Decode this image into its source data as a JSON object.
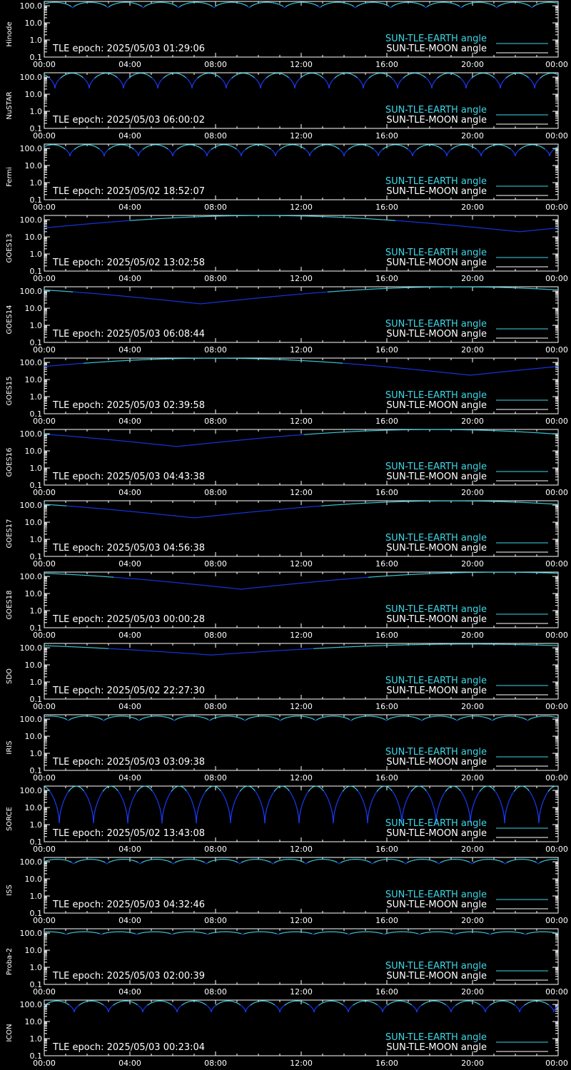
{
  "colors": {
    "earth": "#3cd8e8",
    "moon": "#ffffff",
    "curve_high": "#40e0f0",
    "curve_low": "#1a3cff",
    "axis": "#ffffff",
    "background": "#000000"
  },
  "legend": {
    "earth_label": "SUN-TLE-EARTH angle",
    "moon_label": "SUN-TLE-MOON angle"
  },
  "chart_data": {
    "type": "line",
    "x_tick_labels": [
      "00:00",
      "04:00",
      "08:00",
      "12:00",
      "16:00",
      "20:00",
      "00:00"
    ],
    "y_tick_labels": [
      "100.0",
      "10.0",
      "1.0",
      "0.1"
    ],
    "x_range_hours": [
      0,
      24
    ],
    "ylim": [
      0.1,
      180
    ],
    "y_scale": "log",
    "panels": [
      {
        "satellite": "Hinode",
        "epoch": "TLE epoch: 2025/05/03 01:29:06",
        "series": {
          "name": "SUN-TLE-EARTH angle",
          "profile": "periodic",
          "period_hours": 1.65,
          "phase_hours": 0.5,
          "max_deg": 160,
          "min_deg": 70
        }
      },
      {
        "satellite": "NuSTAR",
        "epoch": "TLE epoch: 2025/05/03 06:00:02",
        "series": {
          "name": "SUN-TLE-EARTH angle",
          "profile": "periodic",
          "period_hours": 1.6,
          "phase_hours": 1.3,
          "max_deg": 170,
          "min_deg": 22
        }
      },
      {
        "satellite": "Fermi",
        "epoch": "TLE epoch: 2025/05/02 18:52:07",
        "series": {
          "name": "SUN-TLE-EARTH angle",
          "profile": "periodic",
          "period_hours": 1.6,
          "phase_hours": 0.4,
          "max_deg": 165,
          "min_deg": 35
        }
      },
      {
        "satellite": "GOES13",
        "epoch": "TLE epoch: 2025/05/02 13:02:58",
        "series": {
          "name": "SUN-TLE-EARTH angle",
          "profile": "slow",
          "min_hour": 22.2,
          "max_deg": 178,
          "min_deg": 20,
          "start_deg": 40
        }
      },
      {
        "satellite": "GOES14",
        "epoch": "TLE epoch: 2025/05/03 06:08:44",
        "series": {
          "name": "SUN-TLE-EARTH angle",
          "profile": "slow",
          "min_hour": 7.3,
          "max_deg": 178,
          "min_deg": 18,
          "start_deg": 110
        }
      },
      {
        "satellite": "GOES15",
        "epoch": "TLE epoch: 2025/05/03 02:39:58",
        "series": {
          "name": "SUN-TLE-EARTH angle",
          "profile": "slow",
          "min_hour": 19.9,
          "max_deg": 178,
          "min_deg": 18,
          "start_deg": 70
        }
      },
      {
        "satellite": "GOES16",
        "epoch": "TLE epoch: 2025/05/03 04:43:38",
        "series": {
          "name": "SUN-TLE-EARTH angle",
          "profile": "slow",
          "min_hour": 6.2,
          "max_deg": 178,
          "min_deg": 18,
          "start_deg": 90
        }
      },
      {
        "satellite": "GOES17",
        "epoch": "TLE epoch: 2025/05/03 04:56:38",
        "series": {
          "name": "SUN-TLE-EARTH angle",
          "profile": "slow",
          "min_hour": 7.0,
          "max_deg": 178,
          "min_deg": 18,
          "start_deg": 105
        }
      },
      {
        "satellite": "GOES18",
        "epoch": "TLE epoch: 2025/05/03 00:00:28",
        "series": {
          "name": "SUN-TLE-EARTH angle",
          "profile": "slow",
          "min_hour": 9.2,
          "max_deg": 178,
          "min_deg": 18,
          "start_deg": 150
        }
      },
      {
        "satellite": "SDO",
        "epoch": "TLE epoch: 2025/05/02 22:27:30",
        "series": {
          "name": "SUN-TLE-EARTH angle",
          "profile": "slow",
          "min_hour": 7.8,
          "max_deg": 165,
          "min_deg": 38,
          "start_deg": 120
        }
      },
      {
        "satellite": "IRIS",
        "epoch": "TLE epoch: 2025/05/03 03:09:38",
        "series": {
          "name": "SUN-TLE-EARTH angle",
          "profile": "periodic",
          "period_hours": 1.65,
          "phase_hours": 0.3,
          "max_deg": 150,
          "min_deg": 75
        }
      },
      {
        "satellite": "SORCE",
        "epoch": "TLE epoch: 2025/05/02 13:43:08",
        "series": {
          "name": "SUN-TLE-EARTH angle",
          "profile": "periodic",
          "period_hours": 1.6,
          "phase_hours": 1.5,
          "max_deg": 178,
          "min_deg": 1.2
        }
      },
      {
        "satellite": "ISS",
        "epoch": "TLE epoch: 2025/05/03 04:32:46",
        "series": {
          "name": "SUN-TLE-EARTH angle",
          "profile": "periodic",
          "period_hours": 1.55,
          "phase_hours": 0.6,
          "max_deg": 140,
          "min_deg": 70
        }
      },
      {
        "satellite": "Proba-2",
        "epoch": "TLE epoch: 2025/05/03 02:00:39",
        "series": {
          "name": "SUN-TLE-EARTH angle",
          "profile": "periodic",
          "period_hours": 1.65,
          "phase_hours": 0.2,
          "max_deg": 120,
          "min_deg": 80
        }
      },
      {
        "satellite": "ICON",
        "epoch": "TLE epoch: 2025/05/03 00:23:04",
        "series": {
          "name": "SUN-TLE-EARTH angle",
          "profile": "periodic",
          "period_hours": 1.6,
          "phase_hours": 0.6,
          "max_deg": 160,
          "min_deg": 35
        }
      }
    ]
  }
}
